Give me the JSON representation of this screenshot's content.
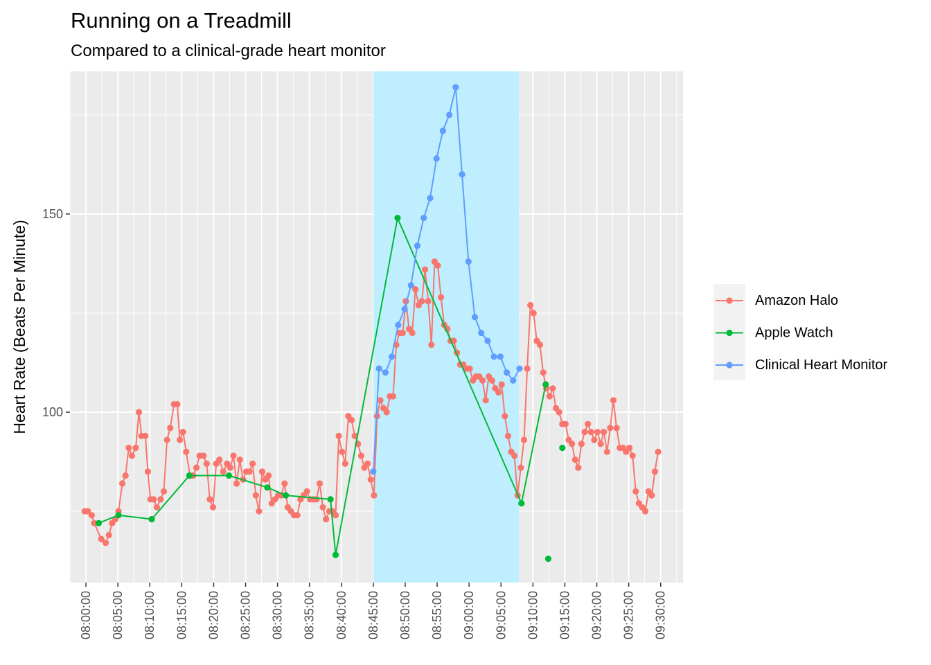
{
  "chart_data": {
    "type": "line",
    "title": "Running on a Treadmill",
    "subtitle": "Compared to a clinical-grade heart monitor",
    "xlabel": "",
    "ylabel": "Heart Rate (Beats Per Minute)",
    "x_unit": "minutes since 08:00:00",
    "xlim": [
      -2.5,
      93.5
    ],
    "ylim": [
      57,
      186
    ],
    "x_ticks": [
      0,
      5,
      10,
      15,
      20,
      25,
      30,
      35,
      40,
      45,
      50,
      55,
      60,
      65,
      70,
      75,
      80,
      85,
      90
    ],
    "x_tick_labels": [
      "08:00:00",
      "08:05:00",
      "08:10:00",
      "08:15:00",
      "08:20:00",
      "08:25:00",
      "08:30:00",
      "08:35:00",
      "08:40:00",
      "08:45:00",
      "08:50:00",
      "08:55:00",
      "09:00:00",
      "09:05:00",
      "09:10:00",
      "09:15:00",
      "09:20:00",
      "09:25:00",
      "09:30:00"
    ],
    "y_ticks": [
      100,
      150
    ],
    "y_tick_labels": [
      "100",
      "150"
    ],
    "grid": true,
    "legend_position": "right",
    "highlight_region": {
      "x_start": 45,
      "x_end": 67.8,
      "color": "#BFEFFF"
    },
    "series": [
      {
        "name": "Amazon Halo",
        "color": "#F8766D",
        "points": [
          [
            -0.2,
            75
          ],
          [
            0.3,
            75
          ],
          [
            0.9,
            74
          ],
          [
            1.3,
            72
          ],
          [
            2.4,
            68
          ],
          [
            3.1,
            67
          ],
          [
            3.6,
            69
          ],
          [
            4.1,
            72
          ],
          [
            4.6,
            73
          ],
          [
            5.1,
            75
          ],
          [
            5.7,
            82
          ],
          [
            6.2,
            84
          ],
          [
            6.7,
            91
          ],
          [
            7.2,
            89
          ],
          [
            7.8,
            91
          ],
          [
            8.3,
            100
          ],
          [
            8.7,
            94
          ],
          [
            9.3,
            94
          ],
          [
            9.7,
            85
          ],
          [
            10.1,
            78
          ],
          [
            10.6,
            78
          ],
          [
            11.1,
            76
          ],
          [
            11.7,
            78
          ],
          [
            12.2,
            80
          ],
          [
            12.7,
            93
          ],
          [
            13.2,
            96
          ],
          [
            13.8,
            102
          ],
          [
            14.3,
            102
          ],
          [
            14.7,
            93
          ],
          [
            15.2,
            95
          ],
          [
            15.7,
            90
          ],
          [
            16.3,
            84
          ],
          [
            16.8,
            84
          ],
          [
            17.3,
            86
          ],
          [
            17.8,
            89
          ],
          [
            18.4,
            89
          ],
          [
            18.9,
            87
          ],
          [
            19.4,
            78
          ],
          [
            19.9,
            76
          ],
          [
            20.4,
            87
          ],
          [
            20.9,
            88
          ],
          [
            21.5,
            85
          ],
          [
            22.1,
            87
          ],
          [
            22.6,
            86
          ],
          [
            23.1,
            89
          ],
          [
            23.6,
            82
          ],
          [
            24.1,
            88
          ],
          [
            24.6,
            83
          ],
          [
            25.1,
            85
          ],
          [
            25.6,
            85
          ],
          [
            26.1,
            87
          ],
          [
            26.6,
            79
          ],
          [
            27.1,
            75
          ],
          [
            27.6,
            85
          ],
          [
            28.1,
            83
          ],
          [
            28.6,
            84
          ],
          [
            29.1,
            77
          ],
          [
            29.6,
            78
          ],
          [
            30.1,
            79
          ],
          [
            30.6,
            79
          ],
          [
            31.1,
            82
          ],
          [
            31.6,
            76
          ],
          [
            32.1,
            75
          ],
          [
            32.6,
            74
          ],
          [
            33.1,
            74
          ],
          [
            33.6,
            78
          ],
          [
            34.1,
            79
          ],
          [
            34.6,
            80
          ],
          [
            35.1,
            78
          ],
          [
            35.6,
            78
          ],
          [
            36.1,
            78
          ],
          [
            36.6,
            82
          ],
          [
            37.1,
            76
          ],
          [
            37.6,
            73
          ],
          [
            38.1,
            75
          ],
          [
            38.6,
            75
          ],
          [
            39.1,
            74
          ],
          [
            39.6,
            94
          ],
          [
            40.1,
            90
          ],
          [
            40.6,
            87
          ],
          [
            41.1,
            99
          ],
          [
            41.6,
            98
          ],
          [
            42.1,
            94
          ],
          [
            42.6,
            92
          ],
          [
            43.1,
            89
          ],
          [
            43.6,
            86
          ],
          [
            44.1,
            87
          ],
          [
            44.6,
            83
          ],
          [
            45.1,
            79
          ],
          [
            45.6,
            99
          ],
          [
            46.1,
            103
          ],
          [
            46.6,
            101
          ],
          [
            47.1,
            100
          ],
          [
            47.6,
            104
          ],
          [
            48.1,
            104
          ],
          [
            48.6,
            117
          ],
          [
            49.1,
            120
          ],
          [
            49.6,
            120
          ],
          [
            50.1,
            128
          ],
          [
            50.6,
            121
          ],
          [
            51.1,
            120
          ],
          [
            51.6,
            131
          ],
          [
            52.1,
            127
          ],
          [
            52.6,
            128
          ],
          [
            53.1,
            136
          ],
          [
            53.6,
            128
          ],
          [
            54.1,
            117
          ],
          [
            54.6,
            138
          ],
          [
            55.1,
            137
          ],
          [
            55.6,
            129
          ],
          [
            56.1,
            122
          ],
          [
            56.6,
            121
          ],
          [
            57.1,
            118
          ],
          [
            57.6,
            118
          ],
          [
            58.1,
            115
          ],
          [
            58.6,
            112
          ],
          [
            59.1,
            112
          ],
          [
            59.6,
            111
          ],
          [
            60.1,
            111
          ],
          [
            60.6,
            108
          ],
          [
            61.1,
            109
          ],
          [
            61.6,
            109
          ],
          [
            62.1,
            108
          ],
          [
            62.6,
            103
          ],
          [
            63.1,
            109
          ],
          [
            63.6,
            108
          ],
          [
            64.1,
            106
          ],
          [
            64.6,
            105
          ],
          [
            65.1,
            107
          ],
          [
            65.6,
            99
          ],
          [
            66.1,
            94
          ],
          [
            66.6,
            90
          ],
          [
            67.1,
            89
          ],
          [
            67.6,
            79
          ],
          [
            68.1,
            86
          ],
          [
            68.6,
            93
          ],
          [
            69.1,
            111
          ],
          [
            69.6,
            127
          ],
          [
            70.1,
            125
          ],
          [
            70.6,
            118
          ],
          [
            71.1,
            117
          ],
          [
            71.6,
            110
          ],
          [
            72.1,
            106
          ],
          [
            72.6,
            104
          ],
          [
            73.1,
            106
          ],
          [
            73.6,
            101
          ],
          [
            74.1,
            100
          ],
          [
            74.6,
            97
          ],
          [
            75.1,
            97
          ],
          [
            75.6,
            93
          ],
          [
            76.1,
            92
          ],
          [
            76.6,
            88
          ],
          [
            77.1,
            86
          ],
          [
            77.6,
            92
          ],
          [
            78.1,
            95
          ],
          [
            78.6,
            97
          ],
          [
            79.1,
            95
          ],
          [
            79.6,
            93
          ],
          [
            80.1,
            95
          ],
          [
            80.6,
            92
          ],
          [
            81.1,
            95
          ],
          [
            81.6,
            90
          ],
          [
            82.1,
            96
          ],
          [
            82.6,
            103
          ],
          [
            83.1,
            96
          ],
          [
            83.6,
            91
          ],
          [
            84.1,
            91
          ],
          [
            84.6,
            90
          ],
          [
            85.1,
            91
          ],
          [
            85.6,
            89
          ],
          [
            86.1,
            80
          ],
          [
            86.6,
            77
          ],
          [
            87.1,
            76
          ],
          [
            87.6,
            75
          ],
          [
            88.1,
            80
          ],
          [
            88.6,
            79
          ],
          [
            89.1,
            85
          ],
          [
            89.6,
            90
          ]
        ]
      },
      {
        "name": "Apple Watch",
        "color": "#00BA38",
        "points": [
          [
            2.0,
            72
          ],
          [
            5.1,
            74
          ],
          [
            10.3,
            73
          ],
          [
            16.2,
            84
          ],
          [
            22.4,
            84
          ],
          [
            28.4,
            81
          ],
          [
            31.3,
            79
          ],
          [
            38.3,
            78
          ],
          [
            39.1,
            64
          ],
          [
            48.8,
            149
          ],
          [
            68.2,
            77
          ],
          [
            72.0,
            107
          ],
          [
            72.4,
            63
          ],
          [
            74.6,
            91
          ]
        ],
        "breaks_after_index": [
          11,
          12
        ]
      },
      {
        "name": "Clinical Heart Monitor",
        "color": "#619CFF",
        "points": [
          [
            45.0,
            85
          ],
          [
            45.9,
            111
          ],
          [
            46.9,
            110
          ],
          [
            47.9,
            114
          ],
          [
            48.9,
            122
          ],
          [
            49.9,
            126
          ],
          [
            50.9,
            132
          ],
          [
            51.9,
            142
          ],
          [
            52.9,
            149
          ],
          [
            53.9,
            154
          ],
          [
            54.9,
            164
          ],
          [
            55.9,
            171
          ],
          [
            56.9,
            175
          ],
          [
            57.9,
            182
          ],
          [
            58.9,
            160
          ],
          [
            59.9,
            138
          ],
          [
            60.9,
            124
          ],
          [
            61.9,
            120
          ],
          [
            62.9,
            118
          ],
          [
            63.9,
            114
          ],
          [
            64.9,
            114
          ],
          [
            65.9,
            110
          ],
          [
            66.9,
            108
          ],
          [
            67.9,
            111
          ]
        ]
      }
    ]
  }
}
